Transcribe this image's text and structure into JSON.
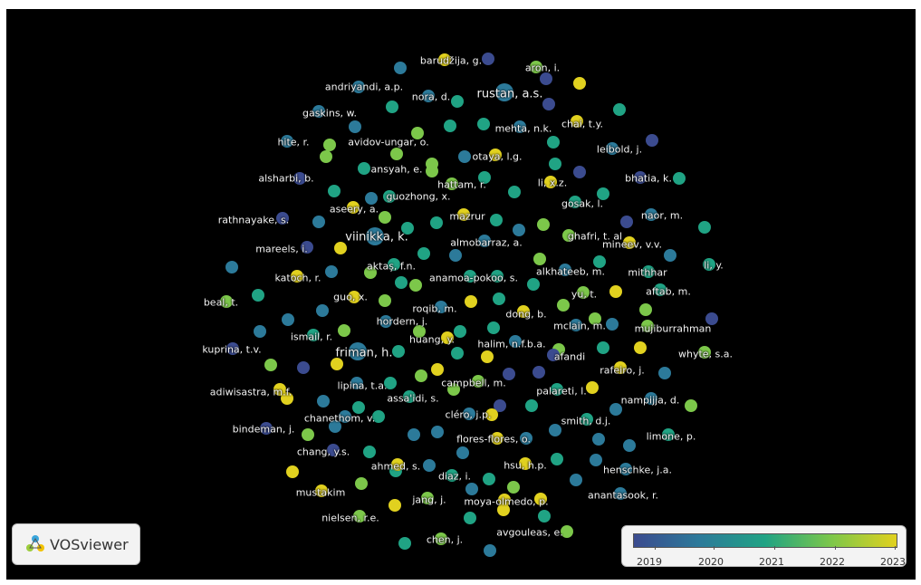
{
  "legend": {
    "ticks": [
      "2019",
      "2020",
      "2021",
      "2022",
      "2023"
    ],
    "colors": [
      "#3b4b8f",
      "#2c7a9a",
      "#20a384",
      "#7cc74a",
      "#e1d11f"
    ]
  },
  "brand": {
    "name": "VOSviewer"
  },
  "labels": [
    "barudžija, g.",
    "aron, i.",
    "andriyandi, a.p.",
    "nora, d.",
    "rustan, a.s.",
    "gaskins, w.",
    "chai, t.y.",
    "mehta, n.k.",
    "hite, r.",
    "avidov-ungar, o.",
    "leibold, j.",
    "otaya, l.g.",
    "ansyah, e.",
    "alsharbi, b.",
    "bhatia, k.",
    "hattam, r.",
    "li, x.z.",
    "guozhong, x.",
    "gosak, l.",
    "rathnayake, s.",
    "aseery, a.",
    "mazrur",
    "naor, m.",
    "ghafri, t. al",
    "viinikka, k.",
    "almobarraz, a.",
    "mineev, v.v.",
    "mareels, i.",
    "aktaş, f.n.",
    "alkhateeb, m.",
    "mithhar",
    "li, y.",
    "katoch, r.",
    "anamoa-pokoo, s.",
    "aftab, m.",
    "yu, t.",
    "beal, t.",
    "guo, x.",
    "roqib, m.",
    "dong, b.",
    "hordern, j.",
    "mclain, m.",
    "mujiburrahman",
    "ismail, r.",
    "huang, y.",
    "halim, n.f.b.a.",
    "kuprina, t.v.",
    "friman, h.",
    "afandi",
    "whyte, s.a.",
    "rafeiro, j.",
    "lipina, t.a.",
    "campbell, m.",
    "palareti, l.",
    "adiwisastra, m.f.",
    "assa'idi, s.",
    "nampijja, d.",
    "cléro, j.p.",
    "chanethom, v.",
    "smith, d.j.",
    "bindeman, j.",
    "flores-flores, o.",
    "limone, p.",
    "chang, y.s.",
    "ahmed, s.",
    "hsu, h.p.",
    "henschke, j.a.",
    "diaz, i.",
    "mustakim",
    "anantasook, r.",
    "jang, j.",
    "moya-olmedo, p.",
    "nielsen, r.e.",
    "avgouleas, e.",
    "chen, j."
  ]
}
